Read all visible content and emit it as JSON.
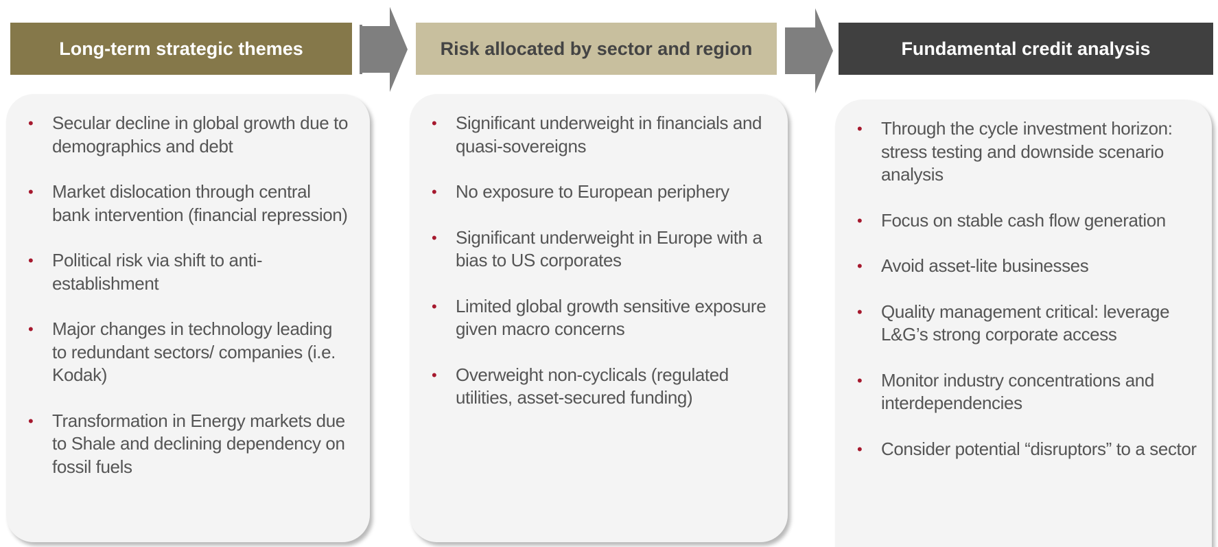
{
  "columns": [
    {
      "title": "Long-term strategic themes",
      "bullets": [
        "Secular decline in global growth due to demographics and debt",
        "Market dislocation through central bank intervention (financial repression)",
        "Political risk via shift to anti-establishment",
        "Major changes in technology leading to redundant sectors/ companies (i.e. Kodak)",
        "Transformation in Energy markets due to Shale and declining dependency on fossil fuels"
      ]
    },
    {
      "title": "Risk allocated by sector and region",
      "bullets": [
        "Significant underweight in financials and quasi-sovereigns",
        "No exposure to European periphery",
        "Significant underweight in Europe with a bias to US corporates",
        "Limited global growth sensitive exposure given macro concerns",
        "Overweight non-cyclicals (regulated utilities, asset-secured funding)"
      ]
    },
    {
      "title": "Fundamental credit analysis",
      "bullets": [
        "Through the cycle investment horizon: stress testing and downside scenario analysis",
        "Focus on stable cash flow generation",
        "Avoid asset-lite businesses",
        "Quality management critical: leverage L&G’s strong corporate access",
        "Monitor industry concentrations and interdependencies",
        "Consider potential “disruptors” to a sector"
      ]
    }
  ]
}
